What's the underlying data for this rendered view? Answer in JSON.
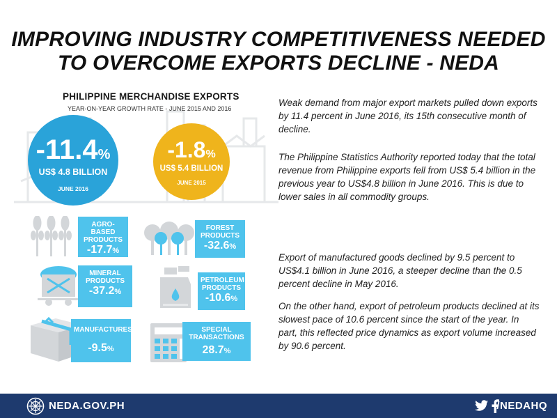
{
  "title": {
    "line1": "IMPROVING INDUSTRY COMPETITIVENESS NEEDED",
    "line2": "TO OVERCOME EXPORTS DECLINE - NEDA"
  },
  "section": {
    "title": "PHILIPPINE MERCHANDISE EXPORTS",
    "subtitle": "YEAR-ON-YEAR  GROWTH RATE - JUNE 2015 AND 2016"
  },
  "circles": [
    {
      "pct_num": "-11.4",
      "pct_sign": "%",
      "amount": "US$ 4.8 BILLION",
      "date": "JUNE 2016",
      "color": "#2aa3d9"
    },
    {
      "pct_num": "-1.8",
      "pct_sign": "%",
      "amount": "US$ 5.4 BILLION",
      "date": "JUNE 2015",
      "color": "#efb41c"
    }
  ],
  "categories": [
    {
      "label_1": "AGRO-BASED",
      "label_2": "PRODUCTS",
      "value_num": "-17.7",
      "value_sign": "%",
      "icon": "wheat-icon"
    },
    {
      "label_1": "FOREST",
      "label_2": "PRODUCTS",
      "value_num": "-32.6",
      "value_sign": "%",
      "icon": "trees-icon"
    },
    {
      "label_1": "MINERAL",
      "label_2": "PRODUCTS",
      "value_num": "-37.2",
      "value_sign": "%",
      "icon": "mine-cart-icon"
    },
    {
      "label_1": "PETROLEUM",
      "label_2": "PRODUCTS",
      "value_num": "-10.6",
      "value_sign": "%",
      "icon": "fuel-can-icon"
    },
    {
      "label_1": "MANUFACTURES",
      "label_2": "",
      "value_num": "-9.5",
      "value_sign": "%",
      "icon": "box-icon"
    },
    {
      "label_1": "SPECIAL",
      "label_2": "TRANSACTIONS",
      "value_num": "28.7",
      "value_sign": "%",
      "icon": "calculator-icon"
    }
  ],
  "paragraphs": [
    "Weak demand from major export markets pulled down exports by 11.4 percent in June 2016, its 15th consecutive month of decline.",
    "The Philippine Statistics Authority reported today that the total revenue from Philippine exports fell from US$ 5.4 billion in the previous year to US$4.8 billion in June 2016. This is due to lower sales in all commodity groups.",
    "Export of manufactured goods declined by 9.5 percent to US$4.1 billion in June 2016, a steeper decline than the 0.5 percent decline in May 2016.",
    "On the other hand, export of petroleum products declined at its slowest pace of 10.6 percent since the start of the year. In part, this reflected price dynamics as export volume increased by 90.6 percent."
  ],
  "footer": {
    "url": "NEDA.GOV.PH",
    "handle": "/NEDAHQ",
    "color": "#1e3a6e"
  },
  "colors": {
    "card_blue": "#4fc3ec",
    "icon_gray": "#d3d6d9",
    "icon_blue": "#4fc3ec"
  }
}
